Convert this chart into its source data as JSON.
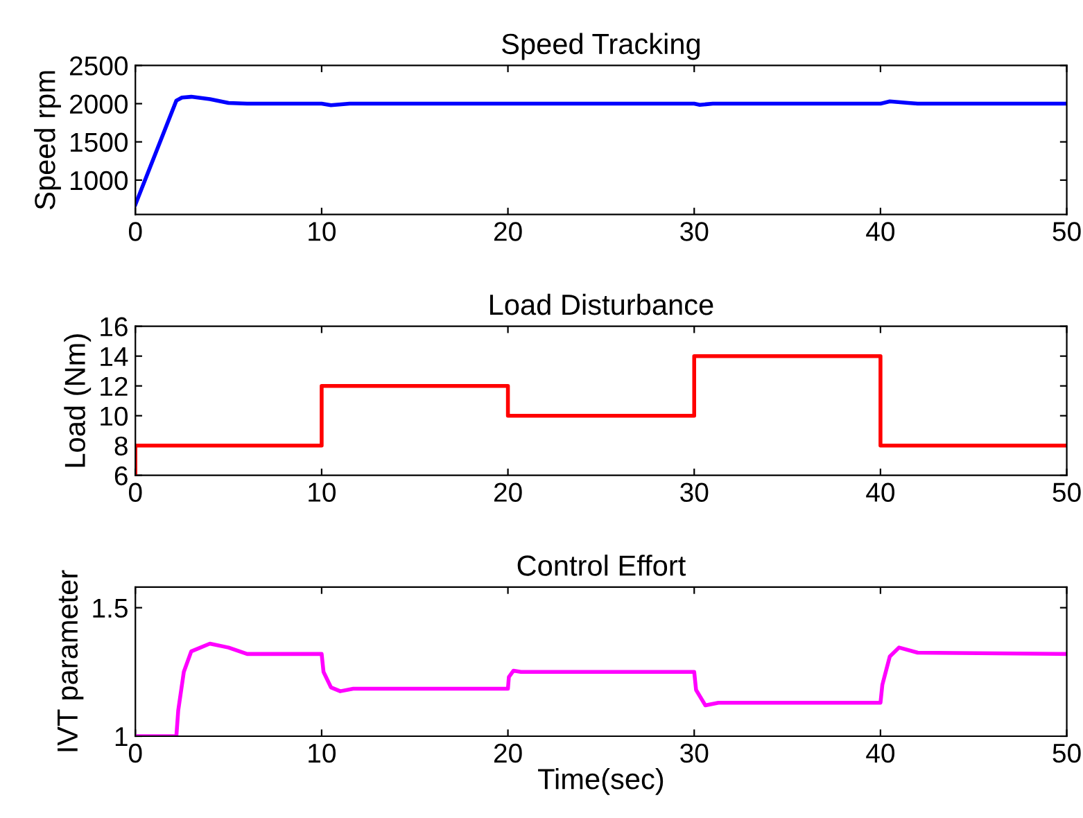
{
  "chart_data": [
    {
      "type": "line",
      "title": "Speed Tracking",
      "ylabel": "Speed rpm",
      "xlim": [
        0,
        50
      ],
      "xticks": [
        0,
        10,
        20,
        30,
        40,
        50
      ],
      "ylim": [
        550,
        2500
      ],
      "yticks": [
        1000,
        1500,
        2000,
        2500
      ],
      "grid": false,
      "series": [
        {
          "color": "#0000ff",
          "x": [
            0,
            2.2,
            2.5,
            3,
            4,
            5,
            6,
            10,
            10.5,
            11.5,
            30,
            30.3,
            31,
            40,
            40.5,
            41.5,
            42,
            50
          ],
          "values": [
            680,
            2040,
            2080,
            2090,
            2060,
            2010,
            2000,
            2000,
            1980,
            2000,
            2000,
            1985,
            2000,
            2000,
            2030,
            2010,
            2000,
            2000
          ]
        }
      ]
    },
    {
      "type": "line",
      "title": "Load Disturbance",
      "ylabel": "Load (Nm)",
      "xlim": [
        0,
        50
      ],
      "xticks": [
        0,
        10,
        20,
        30,
        40,
        50
      ],
      "ylim": [
        6,
        16
      ],
      "yticks": [
        6,
        8,
        10,
        12,
        14,
        16
      ],
      "grid": false,
      "series": [
        {
          "color": "#ff0000",
          "x": [
            0,
            0,
            10,
            10,
            20,
            20,
            30,
            30,
            40,
            40,
            50
          ],
          "values": [
            6,
            8,
            8,
            12,
            12,
            10,
            10,
            14,
            14,
            8,
            8
          ]
        }
      ]
    },
    {
      "type": "line",
      "title": "Control Effort",
      "xlabel": "Time(sec)",
      "ylabel": "IVT parameter",
      "xlim": [
        0,
        50
      ],
      "xticks": [
        0,
        10,
        20,
        30,
        40,
        50
      ],
      "ylim": [
        1,
        1.58
      ],
      "yticks": [
        1,
        1.5
      ],
      "grid": false,
      "series": [
        {
          "color": "#ff00ff",
          "x": [
            0,
            2.2,
            2.3,
            2.6,
            3,
            4,
            5,
            6,
            10,
            10.1,
            10.5,
            11,
            11.7,
            20,
            20.05,
            20.3,
            20.7,
            30,
            30.1,
            30.6,
            31.3,
            40,
            40.1,
            40.5,
            41,
            42,
            50
          ],
          "values": [
            1,
            1,
            1.1,
            1.25,
            1.33,
            1.36,
            1.345,
            1.32,
            1.32,
            1.25,
            1.19,
            1.175,
            1.185,
            1.185,
            1.23,
            1.255,
            1.25,
            1.25,
            1.18,
            1.12,
            1.13,
            1.13,
            1.2,
            1.31,
            1.345,
            1.325,
            1.32
          ]
        }
      ]
    }
  ]
}
